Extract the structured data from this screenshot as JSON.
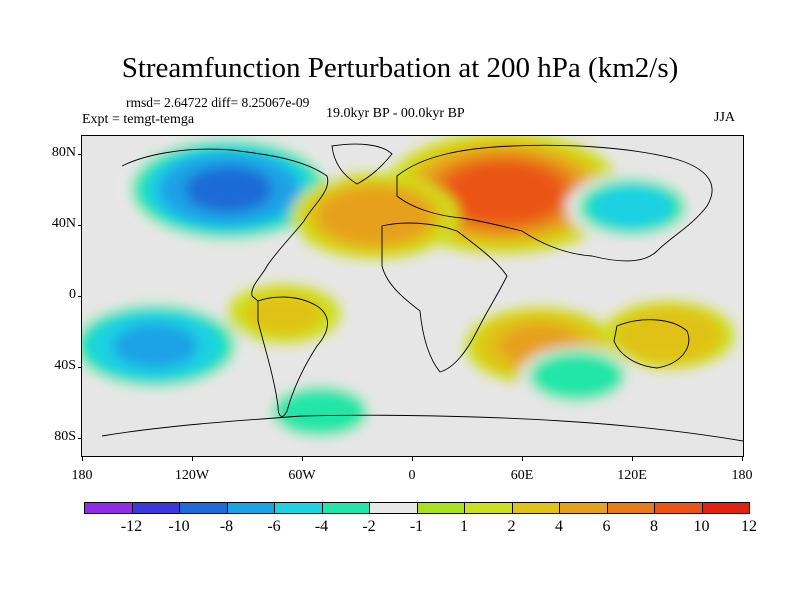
{
  "map": {
    "title": "Streamfunction Perturbation at 200 hPa (km2/s)",
    "stats": "rmsd= 2.64722  diff= 8.25067e-09",
    "experiment": "Expt = temgt-temga",
    "period": "19.0kyr BP - 00.0kyr BP",
    "season": "JJA",
    "lat_labels": [
      "80N",
      "40N",
      "0",
      "40S",
      "80S"
    ],
    "lon_labels": [
      "180",
      "120W",
      "60W",
      "0",
      "60E",
      "120E",
      "180"
    ]
  },
  "colorbar": {
    "colors": [
      "#8f2ce6",
      "#3a3adb",
      "#1e6ad6",
      "#1aa2e6",
      "#1ed2e2",
      "#22e6a8",
      "#e8e8e8",
      "#a8e21c",
      "#cde01c",
      "#e0c214",
      "#e6a01c",
      "#e87a18",
      "#ea5414",
      "#e22210"
    ],
    "labels": [
      "-12",
      "-10",
      "-8",
      "-6",
      "-4",
      "-2",
      "-1",
      "1",
      "2",
      "4",
      "6",
      "8",
      "10",
      "12"
    ]
  },
  "chart_data": {
    "type": "heatmap",
    "title": "Streamfunction Perturbation at 200 hPa (km2/s)",
    "units": "km2/s",
    "levels": [
      -12,
      -10,
      -8,
      -6,
      -4,
      -2,
      -1,
      1,
      2,
      4,
      6,
      8,
      10,
      12
    ],
    "lat_range": [
      -90,
      90
    ],
    "lon_range": [
      -180,
      180
    ],
    "anomalies": [
      {
        "name": "north-america-low",
        "lon": -100,
        "lat": 60,
        "value": -9
      },
      {
        "name": "eurasia-high",
        "lon": 50,
        "lat": 58,
        "value": 10
      },
      {
        "name": "north-atlantic-high",
        "lon": -20,
        "lat": 45,
        "value": 6
      },
      {
        "name": "south-pacific-low",
        "lon": -140,
        "lat": -28,
        "value": -7
      },
      {
        "name": "indian-ocean-high",
        "lon": 70,
        "lat": -28,
        "value": 5
      },
      {
        "name": "australia-high",
        "lon": 140,
        "lat": -22,
        "value": 4
      },
      {
        "name": "east-asia-low",
        "lon": 120,
        "lat": 50,
        "value": -4
      },
      {
        "name": "south-america-high",
        "lon": -70,
        "lat": -10,
        "value": 3
      },
      {
        "name": "south-atlantic-low",
        "lon": -50,
        "lat": -65,
        "value": -3
      },
      {
        "name": "southern-indian-low",
        "lon": 90,
        "lat": -45,
        "value": -3
      }
    ]
  }
}
